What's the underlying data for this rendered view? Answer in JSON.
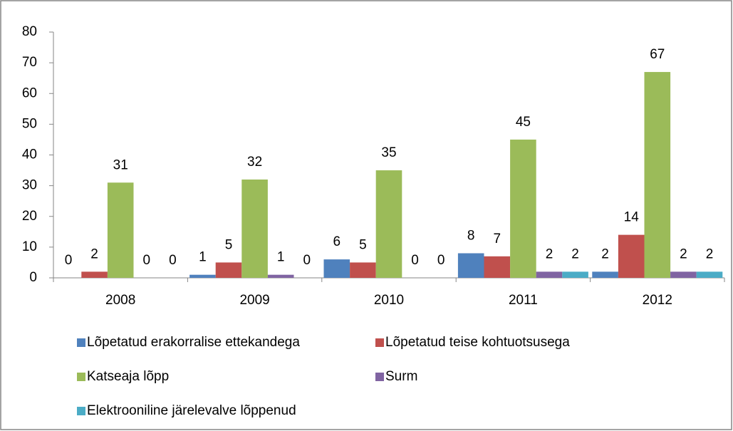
{
  "chart_data": {
    "type": "bar",
    "categories": [
      "2008",
      "2009",
      "2010",
      "2011",
      "2012"
    ],
    "series": [
      {
        "name": "Lõpetatud erakorralise ettekandega",
        "color": "#4f81bd",
        "values": [
          0,
          1,
          6,
          8,
          2
        ]
      },
      {
        "name": "Lõpetatud teise kohtuotsusega",
        "color": "#c0504d",
        "values": [
          2,
          5,
          5,
          7,
          14
        ]
      },
      {
        "name": "Katseaja lõpp",
        "color": "#9bbb59",
        "values": [
          31,
          32,
          35,
          45,
          67
        ]
      },
      {
        "name": "Surm",
        "color": "#8064a2",
        "values": [
          0,
          1,
          0,
          2,
          2
        ]
      },
      {
        "name": "Elektrooniline järelevalve lõppenud",
        "color": "#4bacc6",
        "values": [
          0,
          0,
          0,
          2,
          2
        ]
      }
    ],
    "ylim": [
      0,
      80
    ],
    "yticks": [
      0,
      10,
      20,
      30,
      40,
      50,
      60,
      70,
      80
    ],
    "grid": false,
    "legend": "bottom"
  }
}
